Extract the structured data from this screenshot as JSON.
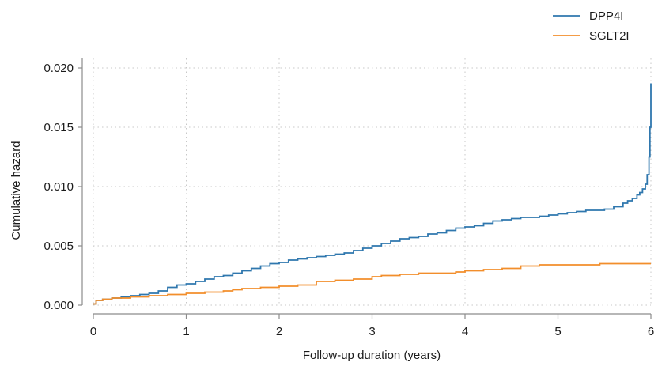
{
  "chart_data": {
    "type": "line",
    "title": "",
    "xlabel": "Follow-up duration (years)",
    "ylabel": "Cumulative hazard",
    "xlim": [
      0,
      6
    ],
    "ylim": [
      0,
      0.02
    ],
    "x_ticks": [
      0,
      1,
      2,
      3,
      4,
      5,
      6
    ],
    "y_ticks": [
      0.0,
      0.005,
      0.01,
      0.015,
      0.02
    ],
    "y_tick_labels": [
      "0.000",
      "0.005",
      "0.010",
      "0.015",
      "0.020"
    ],
    "grid": "dotted",
    "legend_position": "top-right",
    "series": [
      {
        "name": "DPP4I",
        "color": "#2f77ae",
        "x": [
          0,
          0.03,
          0.1,
          0.2,
          0.3,
          0.4,
          0.5,
          0.6,
          0.7,
          0.8,
          0.9,
          1.0,
          1.1,
          1.2,
          1.3,
          1.4,
          1.5,
          1.6,
          1.7,
          1.8,
          1.9,
          2.0,
          2.1,
          2.2,
          2.3,
          2.4,
          2.5,
          2.6,
          2.7,
          2.8,
          2.9,
          3.0,
          3.1,
          3.2,
          3.3,
          3.4,
          3.5,
          3.6,
          3.7,
          3.8,
          3.9,
          4.0,
          4.1,
          4.2,
          4.3,
          4.4,
          4.5,
          4.6,
          4.7,
          4.8,
          4.9,
          5.0,
          5.1,
          5.2,
          5.3,
          5.4,
          5.5,
          5.6,
          5.7,
          5.75,
          5.8,
          5.85,
          5.88,
          5.91,
          5.94,
          5.96,
          5.98,
          5.99,
          6.0
        ],
        "values": [
          0.0001,
          0.0004,
          0.0005,
          0.0006,
          0.0007,
          0.0008,
          0.0009,
          0.001,
          0.0012,
          0.0015,
          0.0017,
          0.0018,
          0.002,
          0.0022,
          0.0024,
          0.0025,
          0.0027,
          0.0029,
          0.0031,
          0.0033,
          0.0035,
          0.0036,
          0.0038,
          0.0039,
          0.004,
          0.0041,
          0.0042,
          0.0043,
          0.0044,
          0.0046,
          0.0048,
          0.005,
          0.0052,
          0.0054,
          0.0056,
          0.0057,
          0.0058,
          0.006,
          0.0061,
          0.0063,
          0.0065,
          0.0066,
          0.0067,
          0.0069,
          0.0071,
          0.0072,
          0.0073,
          0.0074,
          0.0074,
          0.0075,
          0.0076,
          0.0077,
          0.0078,
          0.0079,
          0.008,
          0.008,
          0.0081,
          0.0083,
          0.0086,
          0.0088,
          0.009,
          0.0093,
          0.0095,
          0.0098,
          0.0102,
          0.011,
          0.0125,
          0.015,
          0.0187
        ]
      },
      {
        "name": "SGLT2I",
        "color": "#f28e2b",
        "x": [
          0,
          0.03,
          0.1,
          0.2,
          0.4,
          0.6,
          0.8,
          1.0,
          1.2,
          1.4,
          1.5,
          1.6,
          1.8,
          2.0,
          2.2,
          2.4,
          2.6,
          2.8,
          3.0,
          3.1,
          3.3,
          3.5,
          3.7,
          3.9,
          4.0,
          4.2,
          4.4,
          4.6,
          4.8,
          5.0,
          5.2,
          5.4,
          5.45,
          5.6,
          5.8,
          6.0
        ],
        "values": [
          0.0001,
          0.0004,
          0.0005,
          0.0006,
          0.0007,
          0.0008,
          0.0009,
          0.001,
          0.0011,
          0.0012,
          0.0013,
          0.0014,
          0.0015,
          0.0016,
          0.0017,
          0.002,
          0.0021,
          0.0022,
          0.0024,
          0.0025,
          0.0026,
          0.0027,
          0.0027,
          0.0028,
          0.0029,
          0.003,
          0.0031,
          0.0033,
          0.0034,
          0.0034,
          0.0034,
          0.0034,
          0.0035,
          0.0035,
          0.0035,
          0.0035
        ]
      }
    ]
  }
}
